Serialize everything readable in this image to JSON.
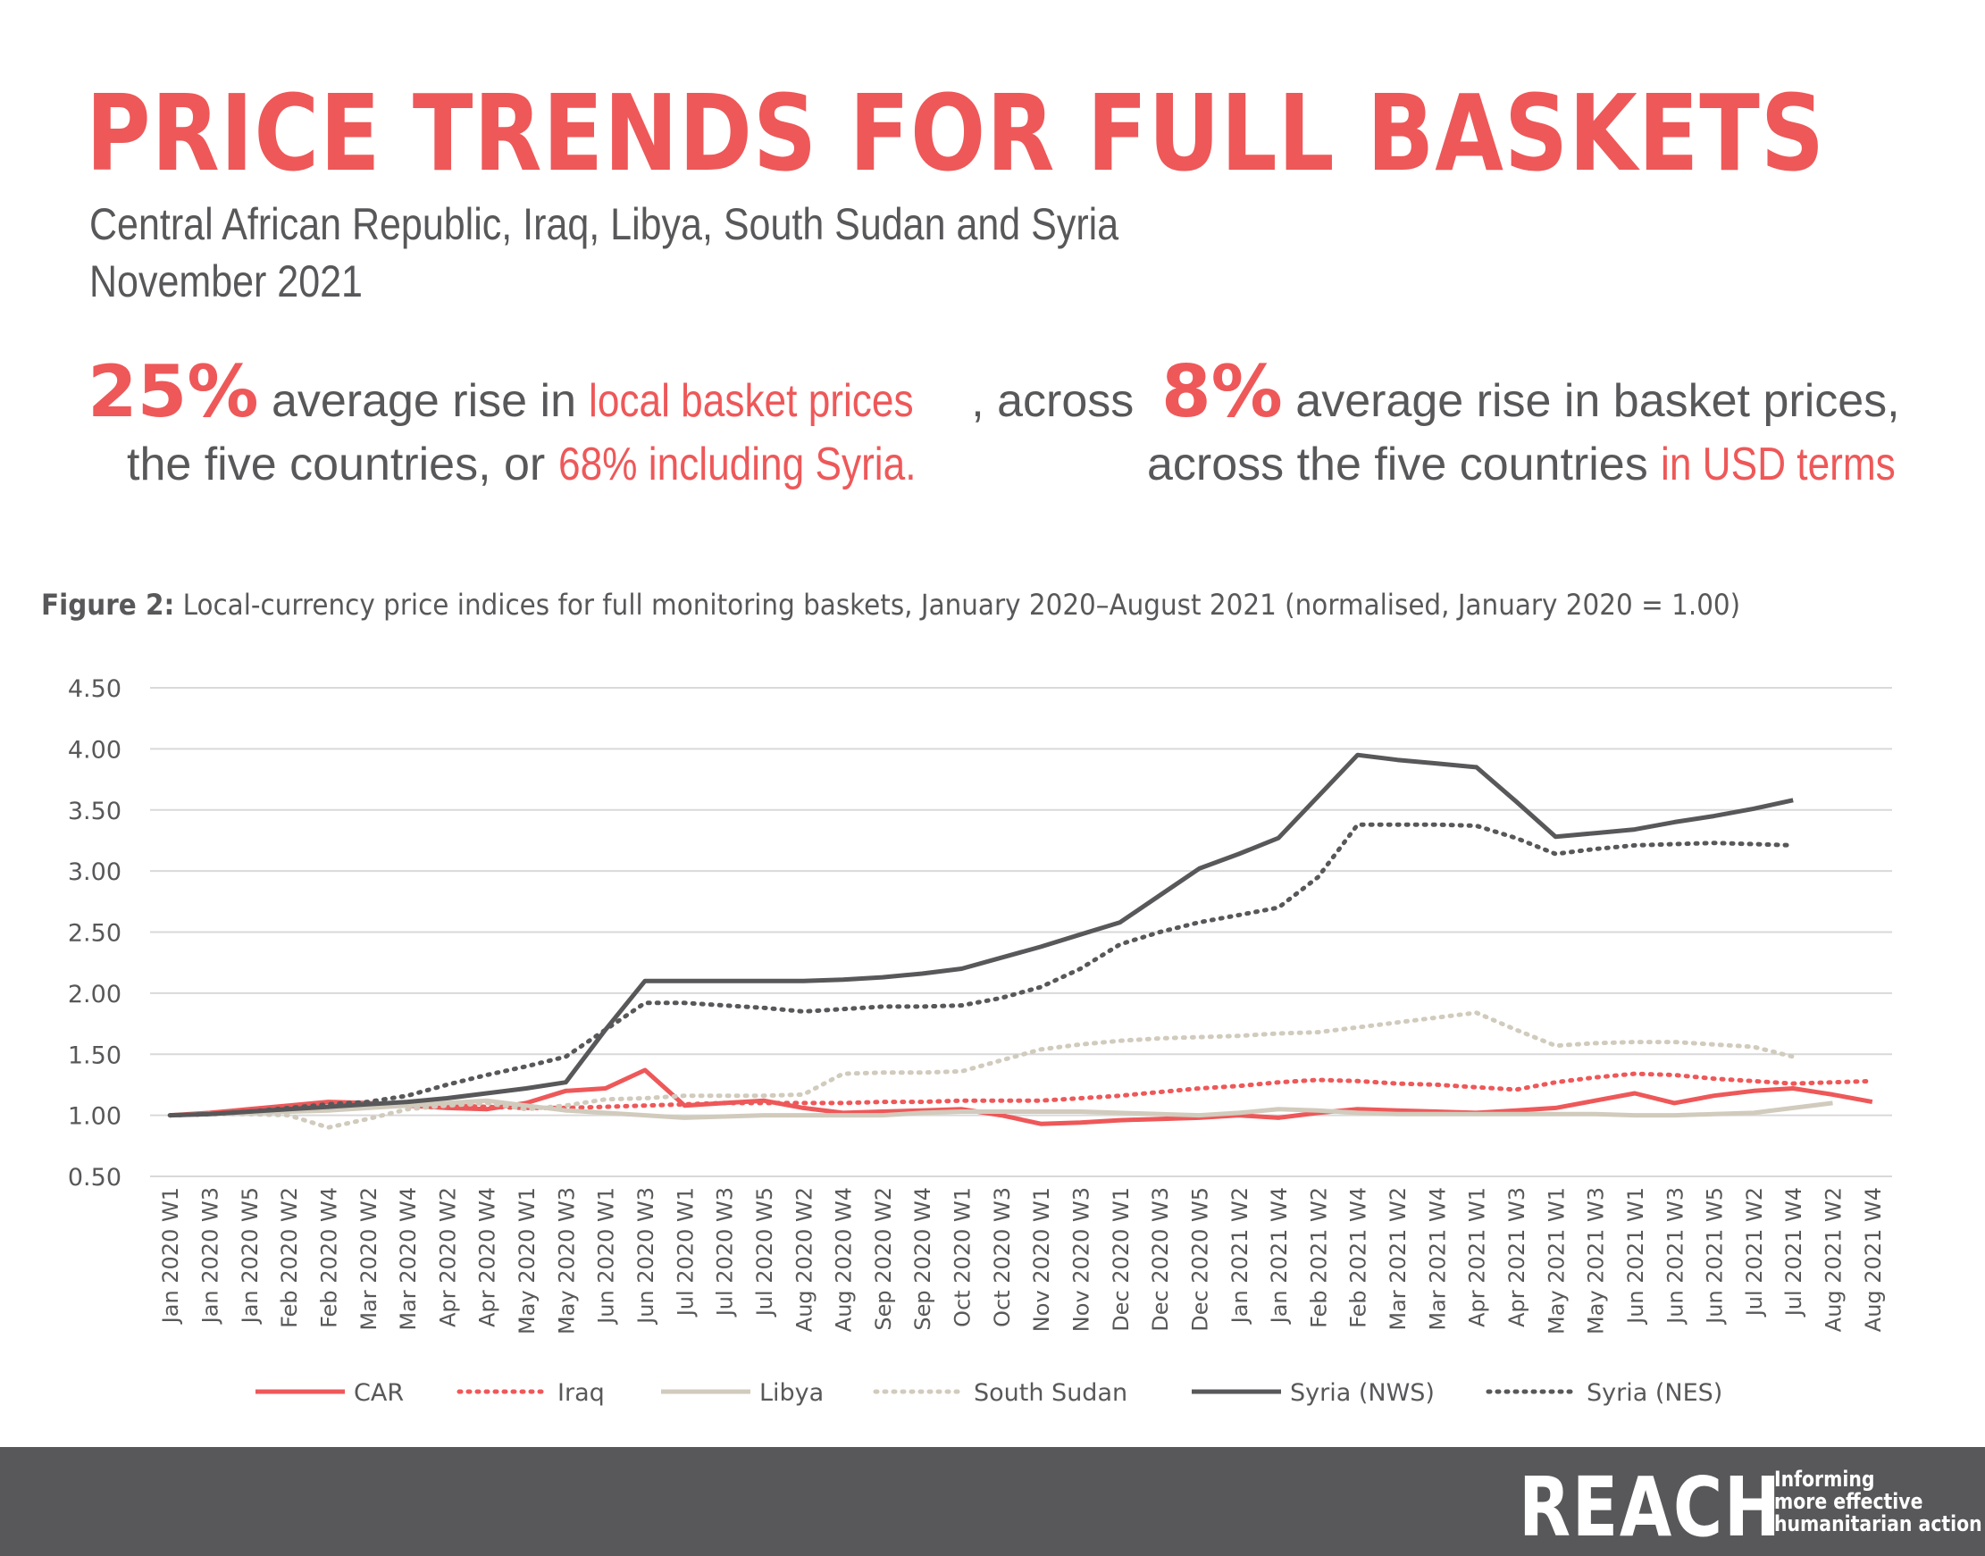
{
  "header": {
    "title": "PRICE TRENDS FOR FULL BASKETS",
    "subtitle_line1": "Central African Republic, Iraq, Libya, South Sudan and Syria",
    "subtitle_line2": "November 2021"
  },
  "stats": {
    "left": {
      "value": "25%",
      "text1": "average rise in",
      "highlight1": "local basket prices",
      "text2": ", across",
      "text3": "the five countries, or",
      "highlight2": "68% including Syria."
    },
    "right": {
      "value": "8%",
      "text1": "average rise in basket prices,",
      "text2": "across the five countries",
      "highlight": "in USD terms"
    }
  },
  "figure": {
    "label": "Figure 2:",
    "caption": "Local-currency price indices for full monitoring baskets, January 2020–August 2021 (normalised, January 2020 = 1.00)"
  },
  "colors": {
    "accent": "#ee5859",
    "dark": "#58585a",
    "beige": "#d1cbbd",
    "grid": "#d9d9d9"
  },
  "chart_data": {
    "type": "line",
    "x": [
      "Jan 2020 W1",
      "Jan 2020 W3",
      "Jan 2020 W5",
      "Feb 2020 W2",
      "Feb 2020 W4",
      "Mar 2020 W2",
      "Mar 2020 W4",
      "Apr 2020 W2",
      "Apr 2020 W4",
      "May 2020 W1",
      "May 2020 W3",
      "Jun 2020 W1",
      "Jun 2020 W3",
      "Jul 2020 W1",
      "Jul 2020 W3",
      "Jul 2020 W5",
      "Aug 2020 W2",
      "Aug 2020 W4",
      "Sep 2020 W2",
      "Sep 2020 W4",
      "Oct 2020 W1",
      "Oct 2020 W3",
      "Nov 2020 W1",
      "Nov 2020 W3",
      "Dec 2020 W1",
      "Dec 2020 W3",
      "Dec 2020 W5",
      "Jan 2021 W2",
      "Jan 2021 W4",
      "Feb 2021 W2",
      "Feb 2021 W4",
      "Mar 2021 W2",
      "Mar 2021 W4",
      "Apr 2021 W1",
      "Apr 2021 W3",
      "May 2021 W1",
      "May 2021 W3",
      "Jun 2021 W1",
      "Jun 2021 W3",
      "Jun 2021 W5",
      "Jul 2021 W2",
      "Jul 2021 W4",
      "Aug 2021 W2",
      "Aug 2021 W4"
    ],
    "y_ticks": [
      "4.50",
      "4.00",
      "3.50",
      "3.00",
      "2.50",
      "2.00",
      "1.50",
      "1.00",
      "0.50"
    ],
    "ylim": [
      0.5,
      4.5
    ],
    "grid": "horizontal",
    "legend_position": "bottom",
    "series": [
      {
        "name": "CAR",
        "color": "#ee5859",
        "style": "solid",
        "values": [
          1.0,
          1.02,
          1.05,
          1.08,
          1.11,
          1.1,
          1.08,
          1.06,
          1.05,
          1.1,
          1.2,
          1.22,
          1.37,
          1.08,
          1.1,
          1.12,
          1.06,
          1.02,
          1.03,
          1.04,
          1.05,
          1.0,
          0.93,
          0.94,
          0.96,
          0.97,
          0.98,
          1.0,
          0.98,
          1.02,
          1.05,
          1.04,
          1.03,
          1.02,
          1.04,
          1.06,
          1.12,
          1.18,
          1.1,
          1.16,
          1.2,
          1.22,
          1.17,
          1.11
        ]
      },
      {
        "name": "Iraq",
        "color": "#ee5859",
        "style": "dotted",
        "values": [
          1.0,
          1.01,
          1.02,
          1.04,
          1.06,
          1.07,
          1.08,
          1.08,
          1.07,
          1.06,
          1.06,
          1.07,
          1.08,
          1.09,
          1.1,
          1.1,
          1.1,
          1.1,
          1.11,
          1.11,
          1.12,
          1.12,
          1.12,
          1.14,
          1.16,
          1.19,
          1.22,
          1.24,
          1.27,
          1.29,
          1.28,
          1.26,
          1.25,
          1.23,
          1.21,
          1.27,
          1.31,
          1.34,
          1.33,
          1.3,
          1.28,
          1.26,
          1.27,
          1.28
        ]
      },
      {
        "name": "Libya",
        "color": "#d1cbbd",
        "style": "solid",
        "values": [
          1.0,
          1.01,
          1.02,
          1.03,
          1.04,
          1.06,
          1.08,
          1.1,
          1.12,
          1.08,
          1.04,
          1.02,
          1.0,
          0.98,
          0.99,
          1.0,
          1.0,
          1.0,
          1.0,
          1.02,
          1.03,
          1.03,
          1.03,
          1.03,
          1.02,
          1.01,
          1.0,
          1.02,
          1.05,
          1.04,
          1.02,
          1.01,
          1.01,
          1.01,
          1.01,
          1.01,
          1.01,
          1.0,
          1.0,
          1.01,
          1.02,
          1.06,
          1.1,
          null
        ]
      },
      {
        "name": "South Sudan",
        "color": "#d1cbbd",
        "style": "dotted",
        "values": [
          1.0,
          1.01,
          1.01,
          1.0,
          0.9,
          0.97,
          1.05,
          1.08,
          1.1,
          1.05,
          1.08,
          1.13,
          1.14,
          1.16,
          1.16,
          1.16,
          1.17,
          1.34,
          1.35,
          1.35,
          1.36,
          1.45,
          1.54,
          1.58,
          1.61,
          1.63,
          1.64,
          1.65,
          1.67,
          1.68,
          1.72,
          1.76,
          1.8,
          1.84,
          1.7,
          1.57,
          1.59,
          1.6,
          1.6,
          1.58,
          1.56,
          1.48,
          null,
          null
        ]
      },
      {
        "name": "Syria (NWS)",
        "color": "#58585a",
        "style": "solid",
        "values": [
          1.0,
          1.01,
          1.03,
          1.05,
          1.07,
          1.09,
          1.11,
          1.14,
          1.18,
          1.22,
          1.27,
          1.7,
          2.1,
          2.1,
          2.1,
          2.1,
          2.1,
          2.11,
          2.13,
          2.16,
          2.2,
          2.29,
          2.38,
          2.48,
          2.58,
          2.8,
          3.02,
          3.14,
          3.27,
          3.61,
          3.95,
          3.91,
          3.88,
          3.85,
          3.57,
          3.28,
          3.31,
          3.34,
          3.4,
          3.45,
          3.51,
          3.58,
          null,
          null
        ]
      },
      {
        "name": "Syria (NES)",
        "color": "#58585a",
        "style": "dotted",
        "values": [
          1.0,
          1.01,
          1.03,
          1.06,
          1.09,
          1.11,
          1.16,
          1.25,
          1.33,
          1.4,
          1.48,
          1.7,
          1.92,
          1.92,
          1.9,
          1.88,
          1.85,
          1.87,
          1.89,
          1.89,
          1.9,
          1.96,
          2.05,
          2.2,
          2.4,
          2.5,
          2.58,
          2.64,
          2.7,
          2.95,
          3.38,
          3.38,
          3.38,
          3.37,
          3.27,
          3.14,
          3.18,
          3.21,
          3.22,
          3.23,
          3.22,
          3.21,
          null,
          null
        ]
      }
    ]
  },
  "footer": {
    "logo": "REACH",
    "tagline": [
      "Informing",
      "more effective",
      "humanitarian action"
    ]
  }
}
